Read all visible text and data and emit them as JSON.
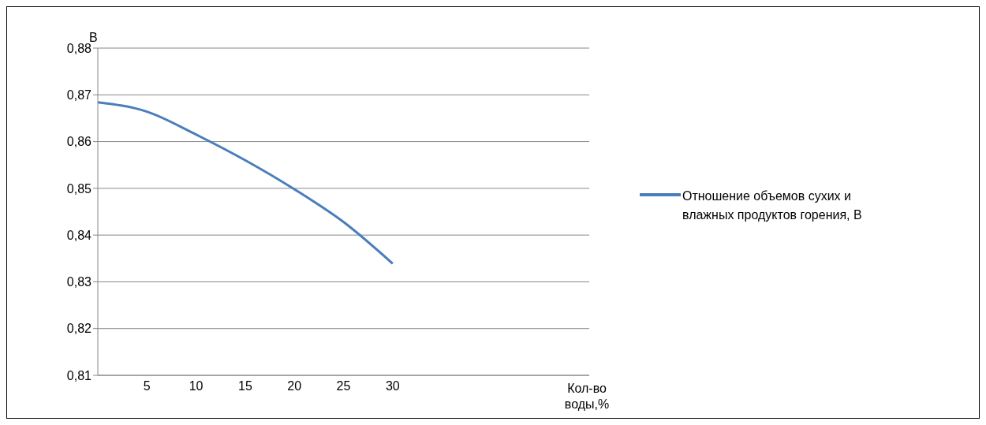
{
  "chart_data": {
    "type": "line",
    "xlabel": "Кол-во воды,%",
    "ylabel": "В",
    "categories": [
      null,
      "5",
      "10",
      "15",
      "20",
      "25",
      "30",
      null,
      null,
      null,
      null
    ],
    "series": [
      {
        "name": "Отношение объемов сухих и влажных продуктов горения, В",
        "color": "#4a7ebb",
        "values": [
          0.8684,
          0.8664,
          0.8615,
          0.856,
          0.8498,
          0.8428,
          0.8339,
          null,
          null,
          null,
          null
        ]
      }
    ],
    "ylim": [
      0.81,
      0.88
    ],
    "yticks": [
      {
        "value": 0.81,
        "label": "0,81"
      },
      {
        "value": 0.82,
        "label": "0,82"
      },
      {
        "value": 0.83,
        "label": "0,83"
      },
      {
        "value": 0.84,
        "label": "0,84"
      },
      {
        "value": 0.85,
        "label": "0,85"
      },
      {
        "value": 0.86,
        "label": "0,86"
      },
      {
        "value": 0.87,
        "label": "0,87"
      },
      {
        "value": 0.88,
        "label": "0,88"
      }
    ],
    "grid": "y",
    "legend": "right",
    "marker": "none",
    "line_style": "solid"
  }
}
